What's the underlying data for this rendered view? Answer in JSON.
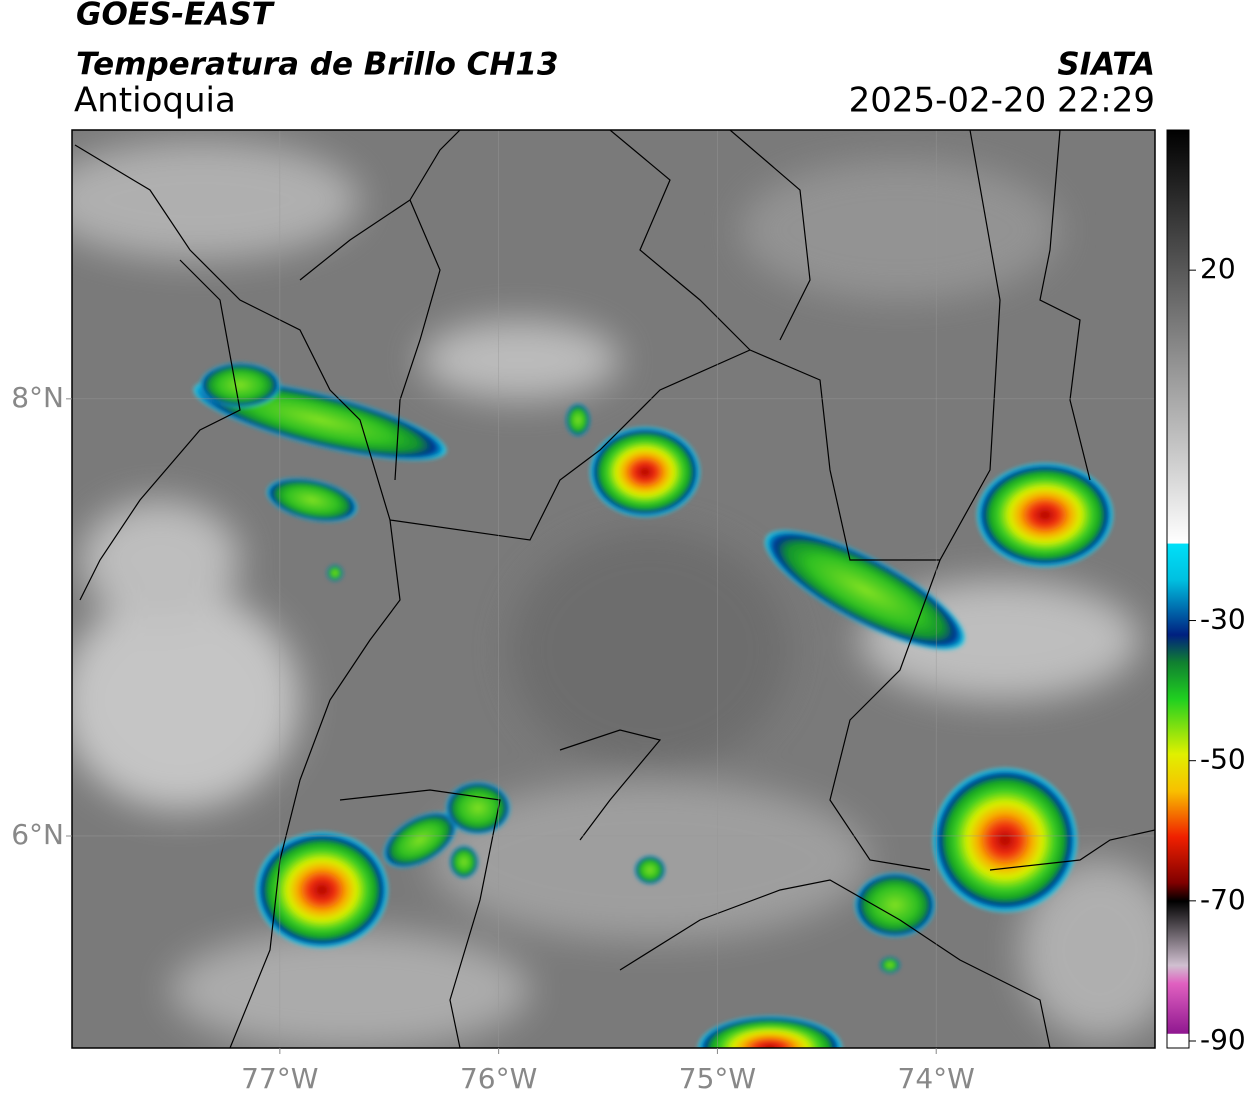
{
  "chart_data": {
    "type": "map",
    "title": "GOES-EAST",
    "subtitle": "Temperatura de Brillo CH13",
    "region": "Antioquia",
    "source": "SIATA",
    "timestamp": "2025-02-20 22:29",
    "xlim": [
      -77.95,
      -73
    ],
    "ylim": [
      5.03,
      9.23
    ],
    "xticks": [
      {
        "value": -77,
        "label": "77°W"
      },
      {
        "value": -76,
        "label": "76°W"
      },
      {
        "value": -75,
        "label": "75°W"
      },
      {
        "value": -74,
        "label": "74°W"
      }
    ],
    "yticks": [
      {
        "value": 6,
        "label": "6°N"
      },
      {
        "value": 8,
        "label": "8°N"
      }
    ],
    "grid": true,
    "colorbar": {
      "lim": [
        -91,
        40
      ],
      "ticks": [
        -90,
        -70,
        -50,
        -30,
        20
      ]
    }
  }
}
